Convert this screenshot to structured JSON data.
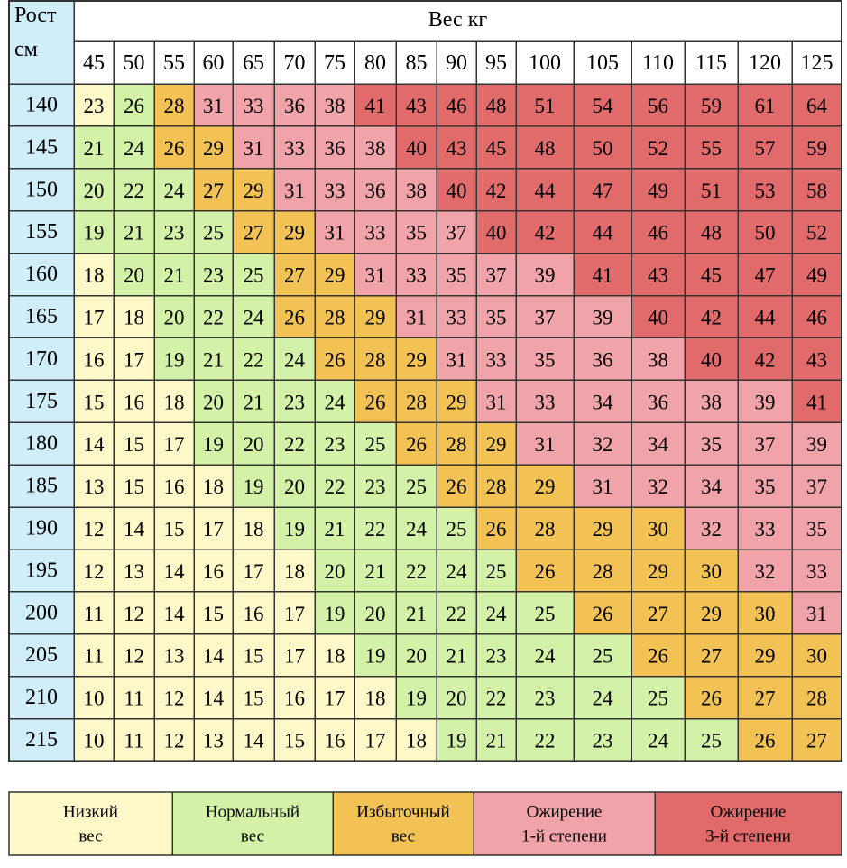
{
  "colors": {
    "underweight": "#fdf8c8",
    "normal": "#d3f2a7",
    "overweight": "#f2c255",
    "obesity1": "#f0a3a8",
    "obesity3": "#e16a6b",
    "height_column": "#cfeefa",
    "grid": "#333333"
  },
  "chart_data": {
    "type": "heatmap",
    "title": "",
    "corner_label": [
      "Рост",
      "см"
    ],
    "x_axis_label": "Вес кг",
    "weights": [
      "45",
      "50",
      "55",
      "60",
      "65",
      "70",
      "75",
      "80",
      "85",
      "90",
      "95",
      "100",
      "105",
      "110",
      "115",
      "120",
      "125"
    ],
    "heights": [
      "140",
      "145",
      "150",
      "155",
      "160",
      "165",
      "170",
      "175",
      "180",
      "185",
      "190",
      "195",
      "200",
      "205",
      "210",
      "215"
    ],
    "values": [
      [
        23,
        26,
        28,
        31,
        33,
        36,
        38,
        41,
        43,
        46,
        48,
        51,
        54,
        56,
        59,
        61,
        64
      ],
      [
        21,
        24,
        26,
        29,
        31,
        33,
        36,
        38,
        40,
        43,
        45,
        48,
        50,
        52,
        55,
        57,
        59
      ],
      [
        20,
        22,
        24,
        27,
        29,
        31,
        33,
        36,
        38,
        40,
        42,
        44,
        47,
        49,
        51,
        53,
        58
      ],
      [
        19,
        21,
        23,
        25,
        27,
        29,
        31,
        33,
        35,
        37,
        40,
        42,
        44,
        46,
        48,
        50,
        52
      ],
      [
        18,
        20,
        21,
        23,
        25,
        27,
        29,
        31,
        33,
        35,
        37,
        39,
        41,
        43,
        45,
        47,
        49
      ],
      [
        17,
        18,
        20,
        22,
        24,
        26,
        28,
        29,
        31,
        33,
        35,
        37,
        39,
        40,
        42,
        44,
        46
      ],
      [
        16,
        17,
        19,
        21,
        22,
        24,
        26,
        28,
        29,
        31,
        33,
        35,
        36,
        38,
        40,
        42,
        43
      ],
      [
        15,
        16,
        18,
        20,
        21,
        23,
        24,
        26,
        28,
        29,
        31,
        33,
        34,
        36,
        38,
        39,
        41
      ],
      [
        14,
        15,
        17,
        19,
        20,
        22,
        23,
        25,
        26,
        28,
        29,
        31,
        32,
        34,
        35,
        37,
        39
      ],
      [
        13,
        15,
        16,
        18,
        19,
        20,
        22,
        23,
        25,
        26,
        28,
        29,
        31,
        32,
        34,
        35,
        37
      ],
      [
        12,
        14,
        15,
        17,
        18,
        19,
        21,
        22,
        24,
        25,
        26,
        28,
        29,
        30,
        32,
        33,
        35
      ],
      [
        12,
        13,
        14,
        16,
        17,
        18,
        20,
        21,
        22,
        24,
        25,
        26,
        28,
        29,
        30,
        32,
        33
      ],
      [
        11,
        12,
        14,
        15,
        16,
        17,
        19,
        20,
        21,
        22,
        24,
        25,
        26,
        27,
        29,
        30,
        31
      ],
      [
        11,
        12,
        13,
        14,
        15,
        17,
        18,
        19,
        20,
        21,
        23,
        24,
        25,
        26,
        27,
        29,
        30
      ],
      [
        10,
        11,
        12,
        14,
        15,
        16,
        17,
        18,
        19,
        20,
        22,
        23,
        24,
        25,
        26,
        27,
        28
      ],
      [
        10,
        11,
        12,
        13,
        14,
        15,
        16,
        17,
        18,
        19,
        21,
        22,
        23,
        24,
        25,
        26,
        27
      ]
    ],
    "categories": [
      [
        "u",
        "n",
        "o",
        "1",
        "1",
        "1",
        "1",
        "3",
        "3",
        "3",
        "3",
        "3",
        "3",
        "3",
        "3",
        "3",
        "3"
      ],
      [
        "n",
        "n",
        "o",
        "o",
        "1",
        "1",
        "1",
        "1",
        "3",
        "3",
        "3",
        "3",
        "3",
        "3",
        "3",
        "3",
        "3"
      ],
      [
        "n",
        "n",
        "n",
        "o",
        "o",
        "1",
        "1",
        "1",
        "1",
        "3",
        "3",
        "3",
        "3",
        "3",
        "3",
        "3",
        "3"
      ],
      [
        "n",
        "n",
        "n",
        "n",
        "o",
        "o",
        "1",
        "1",
        "1",
        "1",
        "3",
        "3",
        "3",
        "3",
        "3",
        "3",
        "3"
      ],
      [
        "u",
        "n",
        "n",
        "n",
        "n",
        "o",
        "o",
        "1",
        "1",
        "1",
        "1",
        "1",
        "3",
        "3",
        "3",
        "3",
        "3"
      ],
      [
        "u",
        "u",
        "n",
        "n",
        "n",
        "o",
        "o",
        "o",
        "1",
        "1",
        "1",
        "1",
        "1",
        "3",
        "3",
        "3",
        "3"
      ],
      [
        "u",
        "u",
        "n",
        "n",
        "n",
        "n",
        "o",
        "o",
        "o",
        "1",
        "1",
        "1",
        "1",
        "1",
        "3",
        "3",
        "3"
      ],
      [
        "u",
        "u",
        "u",
        "n",
        "n",
        "n",
        "n",
        "o",
        "o",
        "o",
        "1",
        "1",
        "1",
        "1",
        "1",
        "1",
        "3"
      ],
      [
        "u",
        "u",
        "u",
        "n",
        "n",
        "n",
        "n",
        "n",
        "o",
        "o",
        "o",
        "1",
        "1",
        "1",
        "1",
        "1",
        "1"
      ],
      [
        "u",
        "u",
        "u",
        "u",
        "n",
        "n",
        "n",
        "n",
        "n",
        "o",
        "o",
        "o",
        "1",
        "1",
        "1",
        "1",
        "1"
      ],
      [
        "u",
        "u",
        "u",
        "u",
        "u",
        "n",
        "n",
        "n",
        "n",
        "n",
        "o",
        "o",
        "o",
        "o",
        "1",
        "1",
        "1"
      ],
      [
        "u",
        "u",
        "u",
        "u",
        "u",
        "u",
        "n",
        "n",
        "n",
        "n",
        "n",
        "o",
        "o",
        "o",
        "o",
        "1",
        "1"
      ],
      [
        "u",
        "u",
        "u",
        "u",
        "u",
        "u",
        "n",
        "n",
        "n",
        "n",
        "n",
        "n",
        "o",
        "o",
        "o",
        "o",
        "1"
      ],
      [
        "u",
        "u",
        "u",
        "u",
        "u",
        "u",
        "u",
        "n",
        "n",
        "n",
        "n",
        "n",
        "n",
        "o",
        "o",
        "o",
        "o"
      ],
      [
        "u",
        "u",
        "u",
        "u",
        "u",
        "u",
        "u",
        "u",
        "n",
        "n",
        "n",
        "n",
        "n",
        "n",
        "o",
        "o",
        "o"
      ],
      [
        "u",
        "u",
        "u",
        "u",
        "u",
        "u",
        "u",
        "u",
        "u",
        "n",
        "n",
        "n",
        "n",
        "n",
        "n",
        "o",
        "o"
      ]
    ],
    "legend": [
      {
        "key": "u",
        "lines": [
          "Низкий",
          "вес"
        ]
      },
      {
        "key": "n",
        "lines": [
          "Нормальный",
          "вес"
        ]
      },
      {
        "key": "o",
        "lines": [
          "Избыточный",
          "вес"
        ]
      },
      {
        "key": "1",
        "lines": [
          "Ожирение",
          "1-й степени"
        ]
      },
      {
        "key": "3",
        "lines": [
          "Ожирение",
          "3-й степени"
        ]
      }
    ],
    "legend_placement": "bottom",
    "grid": true
  }
}
